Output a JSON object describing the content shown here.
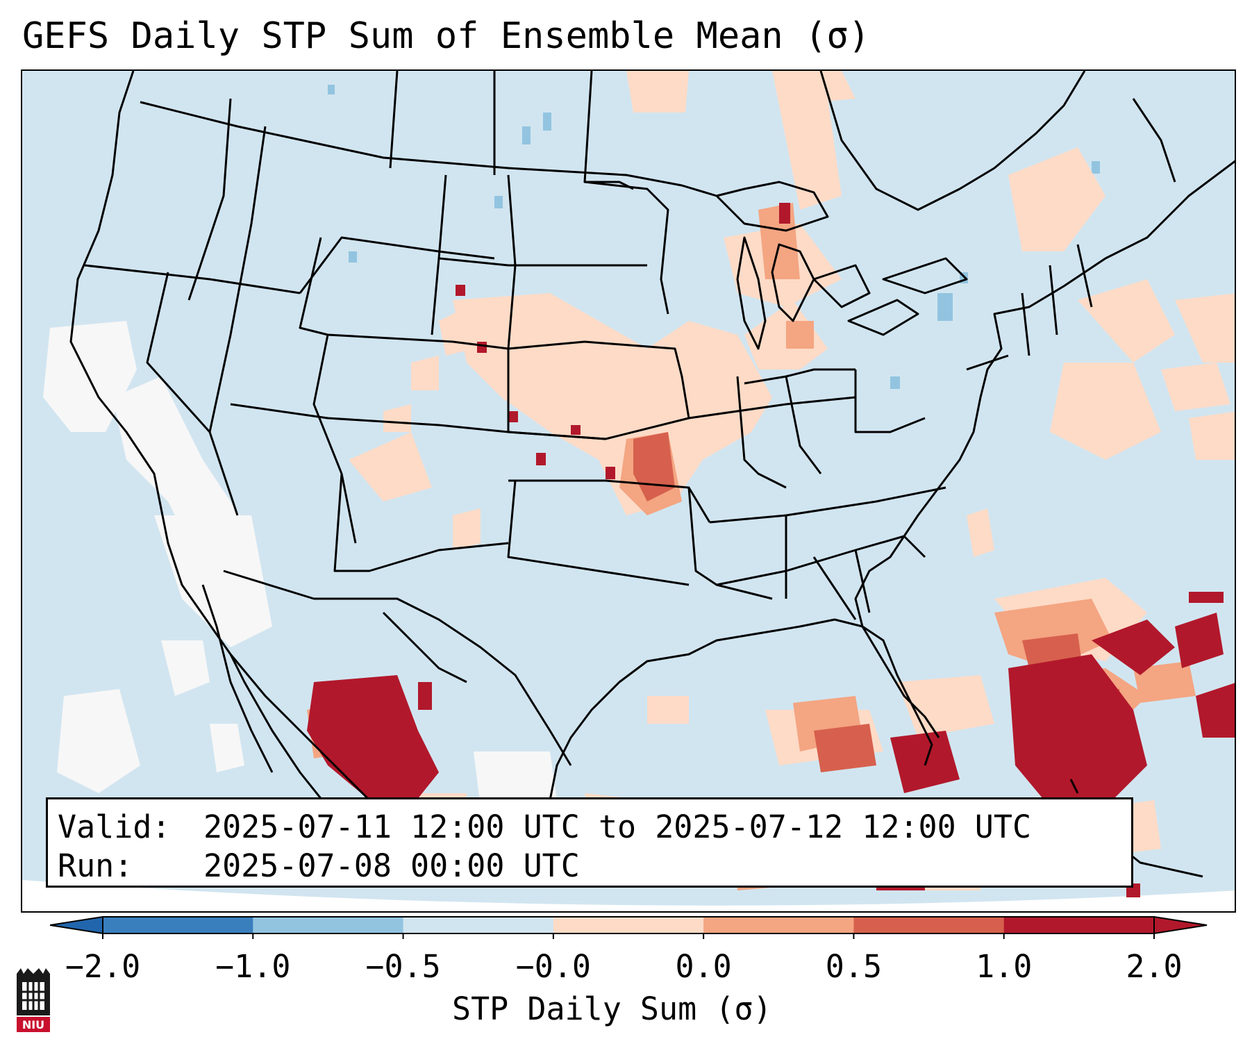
{
  "title": "GEFS Daily STP Sum of Ensemble Mean (σ)",
  "info": {
    "valid_label": "Valid:",
    "valid_value": "2025-07-11 12:00 UTC to 2025-07-12 12:00 UTC",
    "run_label": "Run:",
    "run_value": "2025-07-08 00:00 UTC"
  },
  "colorbar": {
    "label": "STP Daily Sum (σ)",
    "ticks": [
      "−2.0",
      "−1.0",
      "−0.5",
      "−0.0",
      "0.0",
      "0.5",
      "1.0",
      "2.0"
    ],
    "colors": [
      "#3a7fbd",
      "#92c4e0",
      "#d1e5f0",
      "#f7f7f7",
      "#fddbc7",
      "#f4a582",
      "#d6604d",
      "#b2182b"
    ],
    "extend_low_color": "#2166ac",
    "extend_high_color": "#b2182b"
  },
  "map": {
    "background_color": "#d1e5f0",
    "region": "Contiguous United States, southern Canada, Mexico, Gulf of Mexico",
    "logo_text": "NIU"
  }
}
